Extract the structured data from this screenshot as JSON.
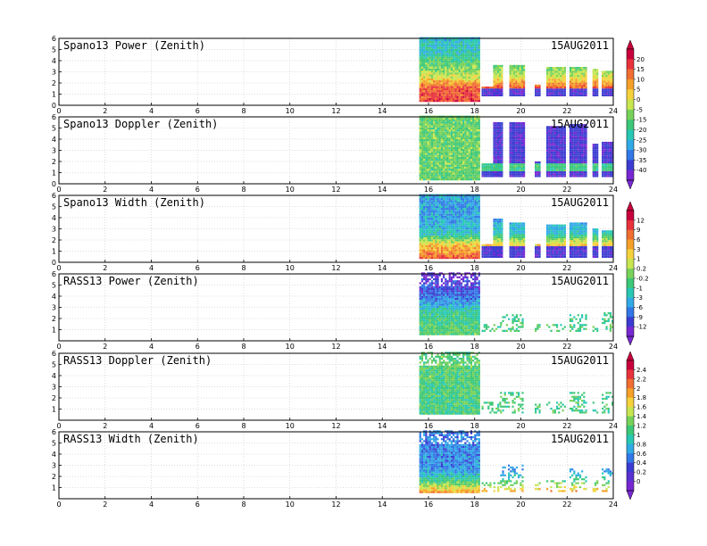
{
  "chart_data": [
    {
      "type": "heatmap",
      "title": "Spano13 Power (Zenith)",
      "date_label": "15AUG2011",
      "xlim": [
        0,
        24
      ],
      "ylim": [
        0,
        6
      ],
      "x_ticks": [
        "0",
        "2",
        "4",
        "6",
        "8",
        "10",
        "12",
        "14",
        "16",
        "18",
        "20",
        "22",
        "24"
      ],
      "y_ticks": [
        "0",
        "1",
        "2",
        "3",
        "4",
        "5",
        "6"
      ],
      "colorbar": "power",
      "value_range": [
        -40,
        20
      ],
      "dense_block": {
        "x": [
          15.6,
          18.2
        ],
        "y": [
          0.3,
          6.0
        ]
      },
      "sparse_segments": [
        [
          18.3,
          19.1,
          0.8,
          1.6
        ],
        [
          18.8,
          19.2,
          0.8,
          3.6
        ],
        [
          19.5,
          20.1,
          0.8,
          3.5
        ],
        [
          20.6,
          20.8,
          0.8,
          1.7
        ],
        [
          21.1,
          21.9,
          0.8,
          3.3
        ],
        [
          22.1,
          22.8,
          0.8,
          3.4
        ],
        [
          23.1,
          23.3,
          0.8,
          3.1
        ],
        [
          23.5,
          24.0,
          0.8,
          3.0
        ]
      ],
      "profile": [
        [
          0.3,
          12
        ],
        [
          1.5,
          10
        ],
        [
          2.5,
          -5
        ],
        [
          3.5,
          -12
        ],
        [
          4.5,
          -18
        ],
        [
          6.0,
          -22
        ]
      ]
    },
    {
      "type": "heatmap",
      "title": "Spano13 Doppler (Zenith)",
      "date_label": "15AUG2011",
      "xlim": [
        0,
        24
      ],
      "ylim": [
        0,
        6
      ],
      "x_ticks": [
        "0",
        "2",
        "4",
        "6",
        "8",
        "10",
        "12",
        "14",
        "16",
        "18",
        "20",
        "22",
        "24"
      ],
      "y_ticks": [
        "0",
        "1",
        "2",
        "3",
        "4",
        "5",
        "6"
      ],
      "colorbar": "power",
      "value_range": [
        -40,
        20
      ],
      "dense_block": {
        "x": [
          15.6,
          18.2
        ],
        "y": [
          0.3,
          6.0
        ]
      },
      "sparse_segments": [
        [
          18.3,
          19.1,
          0.6,
          1.8
        ],
        [
          18.8,
          19.2,
          0.6,
          5.5
        ],
        [
          19.5,
          20.1,
          0.6,
          5.5
        ],
        [
          20.6,
          20.8,
          0.6,
          2.0
        ],
        [
          21.1,
          21.9,
          0.6,
          5.1
        ],
        [
          22.1,
          22.8,
          0.6,
          5.2
        ],
        [
          23.1,
          23.3,
          0.6,
          3.5
        ],
        [
          23.5,
          24.0,
          0.6,
          3.7
        ]
      ],
      "profile": [
        [
          0.3,
          -12
        ],
        [
          6.0,
          -12
        ]
      ]
    },
    {
      "type": "heatmap",
      "title": "Spano13 Width (Zenith)",
      "date_label": "15AUG2011",
      "xlim": [
        0,
        24
      ],
      "ylim": [
        0,
        6
      ],
      "x_ticks": [
        "0",
        "2",
        "4",
        "6",
        "8",
        "10",
        "12",
        "14",
        "16",
        "18",
        "20",
        "22",
        "24"
      ],
      "y_ticks": [
        "0",
        "1",
        "2",
        "3",
        "4",
        "5",
        "6"
      ],
      "colorbar": "width",
      "value_range": [
        -12,
        12
      ],
      "dense_block": {
        "x": [
          15.6,
          18.2
        ],
        "y": [
          0.3,
          6.0
        ]
      },
      "sparse_segments": [
        [
          18.3,
          19.1,
          0.4,
          1.6
        ],
        [
          18.8,
          19.2,
          0.4,
          3.8
        ],
        [
          19.5,
          20.1,
          0.4,
          3.5
        ],
        [
          20.6,
          20.8,
          0.4,
          1.6
        ],
        [
          21.1,
          21.9,
          0.4,
          3.3
        ],
        [
          22.1,
          22.8,
          0.4,
          3.4
        ],
        [
          23.1,
          23.3,
          0.4,
          3.0
        ],
        [
          23.5,
          24.0,
          0.4,
          2.7
        ]
      ],
      "profile": [
        [
          0.3,
          8
        ],
        [
          1.5,
          4
        ],
        [
          2.5,
          -4
        ],
        [
          4.0,
          -6
        ],
        [
          6.0,
          -6
        ]
      ]
    },
    {
      "type": "heatmap",
      "title": "RASS13 Power (Zenith)",
      "date_label": "15AUG2011",
      "xlim": [
        0,
        24
      ],
      "ylim": [
        0,
        6
      ],
      "x_ticks": [
        "0",
        "2",
        "4",
        "6",
        "8",
        "10",
        "12",
        "14",
        "16",
        "18",
        "20",
        "22",
        "24"
      ],
      "y_ticks": [
        "1",
        "2",
        "3",
        "4",
        "5",
        "6"
      ],
      "colorbar": "width",
      "value_range": [
        -12,
        12
      ],
      "dense_block": {
        "x": [
          15.6,
          18.2
        ],
        "y": [
          0.5,
          6.0
        ]
      },
      "sparse_segments": [
        [
          18.3,
          19.1,
          0.8,
          1.4
        ],
        [
          19.1,
          20.1,
          0.8,
          2.3
        ],
        [
          20.6,
          20.8,
          0.8,
          1.4
        ],
        [
          21.1,
          21.9,
          0.8,
          1.4
        ],
        [
          22.1,
          22.8,
          0.8,
          2.3
        ],
        [
          23.1,
          23.3,
          0.8,
          1.5
        ],
        [
          23.5,
          24.0,
          0.8,
          2.5
        ]
      ],
      "profile": [
        [
          0.5,
          -1
        ],
        [
          2.5,
          -3
        ],
        [
          4.0,
          -8
        ],
        [
          6.0,
          -11
        ]
      ]
    },
    {
      "type": "heatmap",
      "title": "RASS13 Doppler (Zenith)",
      "date_label": "15AUG2011",
      "xlim": [
        0,
        24
      ],
      "ylim": [
        0,
        6
      ],
      "x_ticks": [
        "0",
        "2",
        "4",
        "6",
        "8",
        "10",
        "12",
        "14",
        "16",
        "18",
        "20",
        "22",
        "24"
      ],
      "y_ticks": [
        "1",
        "2",
        "3",
        "4",
        "5",
        "6"
      ],
      "colorbar": "doppler",
      "value_range": [
        0,
        2.4
      ],
      "dense_block": {
        "x": [
          15.6,
          18.2
        ],
        "y": [
          0.5,
          6.0
        ]
      },
      "sparse_segments": [
        [
          18.3,
          19.1,
          0.6,
          1.6
        ],
        [
          19.1,
          20.1,
          0.6,
          2.4
        ],
        [
          20.6,
          20.8,
          0.6,
          1.4
        ],
        [
          21.1,
          21.9,
          0.6,
          1.5
        ],
        [
          22.1,
          22.8,
          0.6,
          2.4
        ],
        [
          23.1,
          23.3,
          0.6,
          1.6
        ],
        [
          23.5,
          24.0,
          0.6,
          2.5
        ]
      ],
      "profile": [
        [
          0.5,
          1.1
        ],
        [
          6.0,
          1.2
        ]
      ]
    },
    {
      "type": "heatmap",
      "title": "RASS13 Width (Zenith)",
      "date_label": "15AUG2011",
      "xlim": [
        0,
        24
      ],
      "ylim": [
        0,
        6
      ],
      "x_ticks": [
        "0",
        "2",
        "4",
        "6",
        "8",
        "10",
        "12",
        "14",
        "16",
        "18",
        "20",
        "22",
        "24"
      ],
      "y_ticks": [
        "1",
        "2",
        "3",
        "4",
        "5",
        "6"
      ],
      "colorbar": "doppler",
      "value_range": [
        0,
        2.4
      ],
      "dense_block": {
        "x": [
          15.6,
          18.2
        ],
        "y": [
          0.5,
          6.0
        ]
      },
      "sparse_segments": [
        [
          18.3,
          19.1,
          0.6,
          1.4
        ],
        [
          19.1,
          20.1,
          0.6,
          3.0
        ],
        [
          20.6,
          20.8,
          0.6,
          1.4
        ],
        [
          21.1,
          21.9,
          0.6,
          1.5
        ],
        [
          22.1,
          22.8,
          0.6,
          2.6
        ],
        [
          23.1,
          23.3,
          0.6,
          1.6
        ],
        [
          23.5,
          24.0,
          0.6,
          2.7
        ]
      ],
      "profile": [
        [
          0.5,
          1.8
        ],
        [
          1.5,
          1.1
        ],
        [
          2.5,
          0.7
        ],
        [
          6.0,
          0.6
        ]
      ]
    }
  ],
  "colorbars": {
    "power": {
      "labels": [
        "20",
        "15",
        "10",
        "5",
        "0",
        "-5",
        "-15",
        "-20",
        "-25",
        "-30",
        "-35",
        "-40"
      ],
      "colors": [
        "#c8003c",
        "#e8323c",
        "#f06e32",
        "#f5a028",
        "#f5d23c",
        "#c8e650",
        "#78d25a",
        "#3cc878",
        "#28c8b4",
        "#32aae6",
        "#3278e6",
        "#3c3cd2",
        "#7828d2"
      ]
    },
    "width": {
      "labels": [
        "12",
        "9",
        "6",
        "3",
        "1",
        "0.2",
        "-0.2",
        "-1",
        "-3",
        "-6",
        "-9",
        "-12"
      ],
      "colors": [
        "#c8003c",
        "#e8323c",
        "#f06e32",
        "#f5a028",
        "#f5d23c",
        "#c8e650",
        "#78d25a",
        "#3cc878",
        "#28c8b4",
        "#32aae6",
        "#3278e6",
        "#3c3cd2",
        "#7828d2"
      ]
    },
    "doppler": {
      "labels": [
        "2.4",
        "2.2",
        "2",
        "1.8",
        "1.6",
        "1.4",
        "1.2",
        "1",
        "0.8",
        "0.6",
        "0.4",
        "0.2",
        "0"
      ],
      "colors": [
        "#c8003c",
        "#e8323c",
        "#f06e32",
        "#f5a028",
        "#f5d23c",
        "#c8e650",
        "#78d25a",
        "#3cc878",
        "#28c8b4",
        "#32aae6",
        "#3278e6",
        "#3c3cd2",
        "#5a32d2",
        "#7828d2"
      ]
    }
  }
}
